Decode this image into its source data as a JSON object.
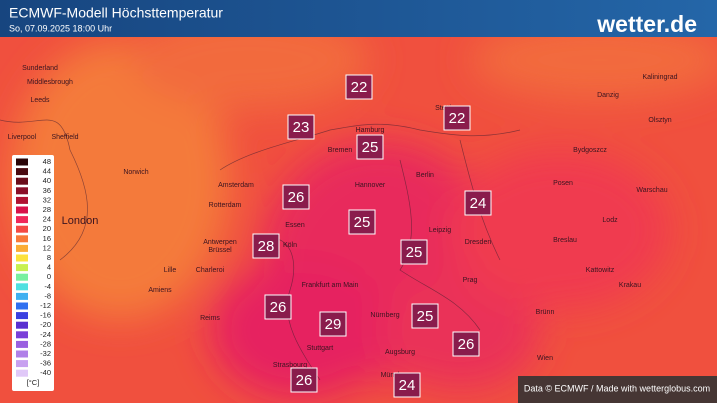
{
  "header": {
    "title": "ECMWF-Modell Höchsttemperatur",
    "subtitle": "So, 07.09.2025 18:00 Uhr",
    "logo": "wetter.de"
  },
  "legend": {
    "unit": "[°C]",
    "items": [
      {
        "value": 48,
        "color": "#2a0508"
      },
      {
        "value": 44,
        "color": "#4a0a10"
      },
      {
        "value": 40,
        "color": "#6a0c1a"
      },
      {
        "value": 36,
        "color": "#8a0e28"
      },
      {
        "value": 32,
        "color": "#b01232"
      },
      {
        "value": 28,
        "color": "#d8124a"
      },
      {
        "value": 24,
        "color": "#f0285a"
      },
      {
        "value": 20,
        "color": "#f44a44"
      },
      {
        "value": 16,
        "color": "#f87a3a"
      },
      {
        "value": 12,
        "color": "#fbac36"
      },
      {
        "value": 8,
        "color": "#fce23c"
      },
      {
        "value": 4,
        "color": "#c8f050"
      },
      {
        "value": 0,
        "color": "#78f0a0"
      },
      {
        "value": -4,
        "color": "#50e0e0"
      },
      {
        "value": -8,
        "color": "#40b0f0"
      },
      {
        "value": -12,
        "color": "#3070f0"
      },
      {
        "value": -16,
        "color": "#3a40e0"
      },
      {
        "value": -20,
        "color": "#5a30d0"
      },
      {
        "value": -24,
        "color": "#7a40d8"
      },
      {
        "value": -28,
        "color": "#9a60e0"
      },
      {
        "value": -32,
        "color": "#b080e8"
      },
      {
        "value": -36,
        "color": "#c8a0f0"
      },
      {
        "value": -40,
        "color": "#e0c8f8"
      }
    ]
  },
  "temperatures": [
    22,
    23,
    25,
    22,
    26,
    25,
    24,
    28,
    25,
    26,
    29,
    25,
    26,
    26,
    24
  ],
  "cities": [
    "Sunderland",
    "Middlesbrough",
    "Leeds",
    "Liverpool",
    "Sheffield",
    "Norwich",
    "London",
    "Amsterdam",
    "Rotterdam",
    "Antwerpen",
    "Brüssel",
    "Charleroi",
    "Lille",
    "Amiens",
    "Reims",
    "Essen",
    "Köln",
    "Bremen",
    "Hamburg",
    "Hannover",
    "Berlin",
    "Leipzig",
    "Dresden",
    "Frankfurt am Main",
    "Nürnberg",
    "Stuttgart",
    "Strasbourg",
    "Augsburg",
    "München",
    "Prag",
    "Brünn",
    "Wien",
    "Stettin",
    "Posen",
    "Breslau",
    "Bydgoszcz",
    "Warschau",
    "Lodz",
    "Kattowitz",
    "Krakau",
    "Kaliningrad",
    "Olsztyn",
    "Danzig"
  ],
  "footer": "Data © ECMWF / Made with wetterglobus.com"
}
